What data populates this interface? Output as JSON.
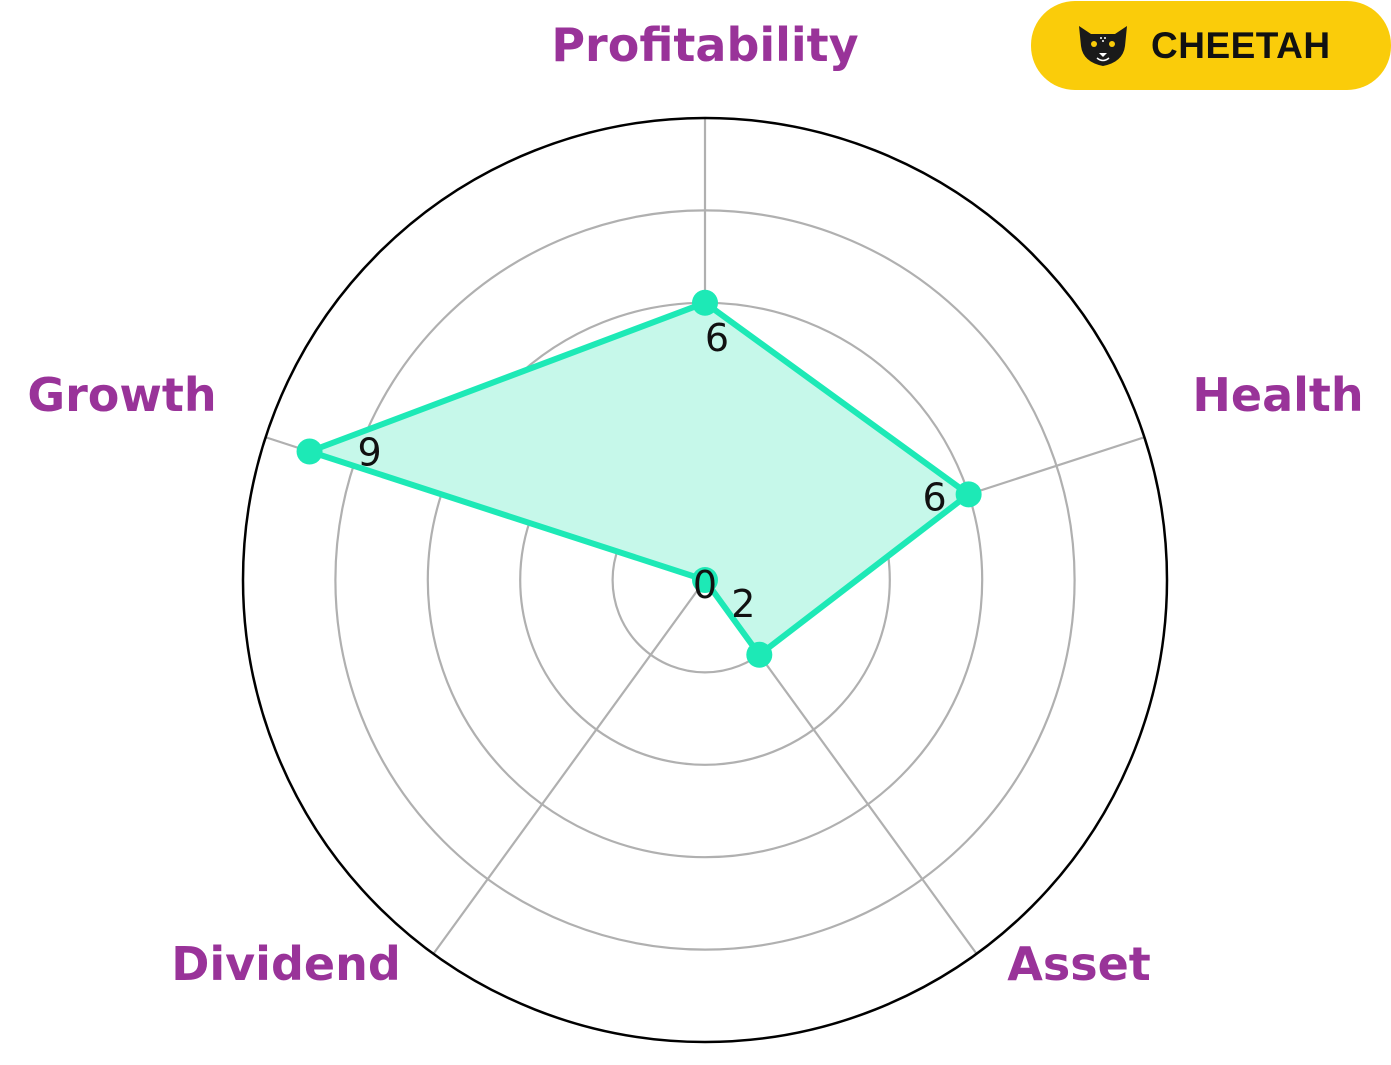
{
  "brand": {
    "name": "CHEETAH",
    "icon": "cheetah-icon",
    "badge_color": "#FACC0A"
  },
  "colors": {
    "series": "#1DE9B6",
    "series_fill": "#C6F8EA",
    "axis_label": "#993399",
    "grid": "#B0B0B0",
    "outer_ring": "#000000"
  },
  "chart_data": {
    "type": "radar",
    "axes": [
      "Profitability",
      "Health",
      "Asset",
      "Dividend",
      "Growth"
    ],
    "values": [
      6,
      6,
      2,
      0,
      9
    ],
    "rmax": 10,
    "grid_levels": [
      2,
      4,
      6,
      8
    ]
  }
}
